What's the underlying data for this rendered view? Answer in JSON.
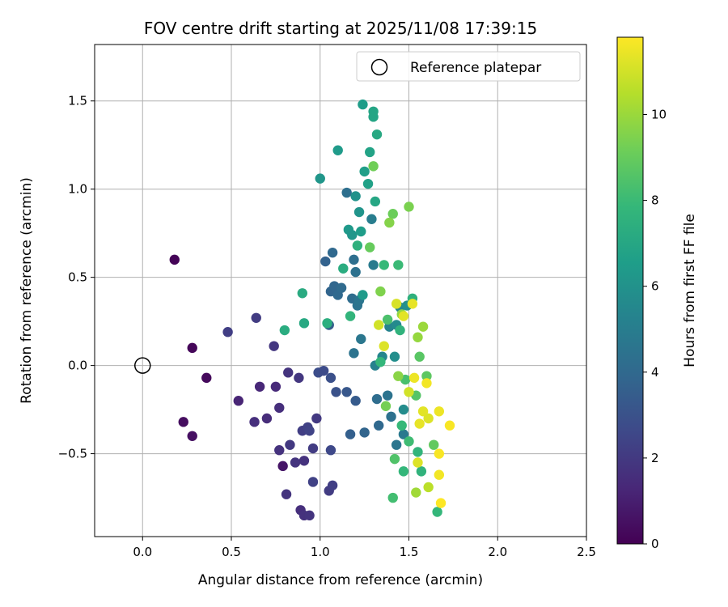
{
  "chart_data": {
    "type": "scatter",
    "title": "FOV centre drift starting at 2025/11/08 17:39:15",
    "xlabel": "Angular distance from reference (arcmin)",
    "ylabel": "Rotation from reference (arcmin)",
    "xlim": [
      -0.27,
      2.5
    ],
    "ylim": [
      -0.97,
      1.82
    ],
    "xticks": [
      0.0,
      0.5,
      1.0,
      1.5,
      2.0,
      2.5
    ],
    "xtick_labels": [
      "0.0",
      "0.5",
      "1.0",
      "1.5",
      "2.0",
      "2.5"
    ],
    "yticks": [
      -0.5,
      0.0,
      0.5,
      1.0,
      1.5
    ],
    "ytick_labels": [
      "−0.5",
      "0.0",
      "0.5",
      "1.0",
      "1.5"
    ],
    "grid": true,
    "legend": {
      "position": "top-right",
      "label": "Reference platepar"
    },
    "reference_point": [
      0.0,
      0.0
    ],
    "colorbar": {
      "label": "Hours from first FF file",
      "range": [
        0,
        11.8
      ],
      "ticks": [
        0,
        2,
        4,
        6,
        8,
        10
      ],
      "tick_labels": [
        "0",
        "2",
        "4",
        "6",
        "8",
        "10"
      ],
      "colormap": "viridis",
      "stops": [
        "#440154",
        "#482878",
        "#3e4989",
        "#31688e",
        "#26828e",
        "#1f9e89",
        "#35b779",
        "#6ece58",
        "#b5de2b",
        "#fde725"
      ]
    },
    "points": [
      {
        "x": 0.18,
        "y": 0.6,
        "h": 0.1
      },
      {
        "x": 0.28,
        "y": 0.1,
        "h": 0.2
      },
      {
        "x": 0.36,
        "y": -0.07,
        "h": 0.3
      },
      {
        "x": 0.23,
        "y": -0.32,
        "h": 0.4
      },
      {
        "x": 0.28,
        "y": -0.4,
        "h": 0.5
      },
      {
        "x": 0.79,
        "y": -0.57,
        "h": 0.7
      },
      {
        "x": 0.48,
        "y": 0.19,
        "h": 2.2
      },
      {
        "x": 0.64,
        "y": 0.27,
        "h": 2.1
      },
      {
        "x": 0.74,
        "y": 0.11,
        "h": 1.9
      },
      {
        "x": 0.54,
        "y": -0.2,
        "h": 1.2
      },
      {
        "x": 0.66,
        "y": -0.12,
        "h": 1.3
      },
      {
        "x": 0.63,
        "y": -0.32,
        "h": 1.6
      },
      {
        "x": 0.7,
        "y": -0.3,
        "h": 1.5
      },
      {
        "x": 0.75,
        "y": -0.12,
        "h": 1.4
      },
      {
        "x": 0.77,
        "y": -0.24,
        "h": 1.6
      },
      {
        "x": 0.82,
        "y": -0.04,
        "h": 1.8
      },
      {
        "x": 0.88,
        "y": -0.07,
        "h": 1.9
      },
      {
        "x": 0.77,
        "y": -0.48,
        "h": 1.7
      },
      {
        "x": 0.83,
        "y": -0.45,
        "h": 2.0
      },
      {
        "x": 0.86,
        "y": -0.55,
        "h": 1.8
      },
      {
        "x": 0.91,
        "y": -0.54,
        "h": 1.7
      },
      {
        "x": 0.81,
        "y": -0.73,
        "h": 1.8
      },
      {
        "x": 0.89,
        "y": -0.82,
        "h": 1.6
      },
      {
        "x": 0.91,
        "y": -0.85,
        "h": 1.7
      },
      {
        "x": 0.94,
        "y": -0.85,
        "h": 1.8
      },
      {
        "x": 0.9,
        "y": -0.37,
        "h": 2.2
      },
      {
        "x": 0.93,
        "y": -0.35,
        "h": 2.3
      },
      {
        "x": 0.94,
        "y": -0.37,
        "h": 2.4
      },
      {
        "x": 0.96,
        "y": -0.47,
        "h": 2.1
      },
      {
        "x": 0.98,
        "y": -0.3,
        "h": 2.0
      },
      {
        "x": 0.96,
        "y": -0.66,
        "h": 2.3
      },
      {
        "x": 1.05,
        "y": -0.71,
        "h": 2.1
      },
      {
        "x": 1.07,
        "y": -0.68,
        "h": 2.2
      },
      {
        "x": 1.06,
        "y": -0.48,
        "h": 2.6
      },
      {
        "x": 0.99,
        "y": -0.04,
        "h": 2.8
      },
      {
        "x": 1.02,
        "y": -0.03,
        "h": 2.7
      },
      {
        "x": 1.06,
        "y": -0.07,
        "h": 2.9
      },
      {
        "x": 1.09,
        "y": -0.15,
        "h": 3.0
      },
      {
        "x": 1.15,
        "y": -0.15,
        "h": 3.2
      },
      {
        "x": 1.2,
        "y": -0.2,
        "h": 3.4
      },
      {
        "x": 1.17,
        "y": -0.39,
        "h": 3.6
      },
      {
        "x": 1.25,
        "y": -0.38,
        "h": 3.8
      },
      {
        "x": 1.33,
        "y": -0.34,
        "h": 4.0
      },
      {
        "x": 1.32,
        "y": -0.19,
        "h": 4.2
      },
      {
        "x": 1.38,
        "y": -0.17,
        "h": 4.5
      },
      {
        "x": 1.4,
        "y": -0.29,
        "h": 4.4
      },
      {
        "x": 1.43,
        "y": -0.45,
        "h": 4.6
      },
      {
        "x": 1.47,
        "y": -0.39,
        "h": 4.8
      },
      {
        "x": 1.05,
        "y": 0.23,
        "h": 3.5
      },
      {
        "x": 1.03,
        "y": 0.59,
        "h": 3.7
      },
      {
        "x": 1.06,
        "y": 0.42,
        "h": 3.8
      },
      {
        "x": 1.08,
        "y": 0.45,
        "h": 3.9
      },
      {
        "x": 1.07,
        "y": 0.64,
        "h": 4.0
      },
      {
        "x": 1.1,
        "y": 0.4,
        "h": 4.0
      },
      {
        "x": 1.12,
        "y": 0.44,
        "h": 4.1
      },
      {
        "x": 1.15,
        "y": 0.98,
        "h": 4.3
      },
      {
        "x": 1.18,
        "y": 0.38,
        "h": 4.2
      },
      {
        "x": 1.19,
        "y": 0.6,
        "h": 4.3
      },
      {
        "x": 1.2,
        "y": 0.53,
        "h": 4.4
      },
      {
        "x": 1.21,
        "y": 0.34,
        "h": 4.5
      },
      {
        "x": 1.22,
        "y": 0.37,
        "h": 4.6
      },
      {
        "x": 1.19,
        "y": 0.07,
        "h": 4.5
      },
      {
        "x": 1.23,
        "y": 0.15,
        "h": 4.7
      },
      {
        "x": 1.3,
        "y": 0.57,
        "h": 4.9
      },
      {
        "x": 1.29,
        "y": 0.83,
        "h": 5.0
      },
      {
        "x": 1.31,
        "y": 0.0,
        "h": 5.2
      },
      {
        "x": 1.35,
        "y": 0.05,
        "h": 5.4
      },
      {
        "x": 1.39,
        "y": 0.22,
        "h": 5.3
      },
      {
        "x": 1.43,
        "y": 0.23,
        "h": 5.6
      },
      {
        "x": 1.45,
        "y": 0.33,
        "h": 5.5
      },
      {
        "x": 1.47,
        "y": -0.25,
        "h": 5.7
      },
      {
        "x": 1.42,
        "y": 0.05,
        "h": 5.8
      },
      {
        "x": 1.49,
        "y": 0.34,
        "h": 5.9
      },
      {
        "x": 1.0,
        "y": 1.06,
        "h": 6.2
      },
      {
        "x": 1.1,
        "y": 1.22,
        "h": 6.4
      },
      {
        "x": 1.2,
        "y": 0.96,
        "h": 6.0
      },
      {
        "x": 1.22,
        "y": 0.87,
        "h": 6.1
      },
      {
        "x": 1.16,
        "y": 0.77,
        "h": 6.3
      },
      {
        "x": 1.18,
        "y": 0.74,
        "h": 6.2
      },
      {
        "x": 1.23,
        "y": 0.76,
        "h": 6.5
      },
      {
        "x": 1.24,
        "y": 0.4,
        "h": 6.4
      },
      {
        "x": 1.25,
        "y": 1.1,
        "h": 6.6
      },
      {
        "x": 1.27,
        "y": 1.03,
        "h": 6.7
      },
      {
        "x": 1.28,
        "y": 1.21,
        "h": 6.8
      },
      {
        "x": 1.3,
        "y": 1.41,
        "h": 6.9
      },
      {
        "x": 1.3,
        "y": 1.44,
        "h": 6.9
      },
      {
        "x": 1.24,
        "y": 1.48,
        "h": 6.5
      },
      {
        "x": 1.31,
        "y": 0.93,
        "h": 7.0
      },
      {
        "x": 1.32,
        "y": 1.31,
        "h": 7.1
      },
      {
        "x": 0.9,
        "y": 0.41,
        "h": 7.2
      },
      {
        "x": 0.91,
        "y": 0.24,
        "h": 7.1
      },
      {
        "x": 0.8,
        "y": 0.2,
        "h": 7.3
      },
      {
        "x": 1.04,
        "y": 0.24,
        "h": 7.4
      },
      {
        "x": 1.13,
        "y": 0.55,
        "h": 7.3
      },
      {
        "x": 1.17,
        "y": 0.28,
        "h": 7.7
      },
      {
        "x": 1.21,
        "y": 0.68,
        "h": 7.5
      },
      {
        "x": 1.34,
        "y": 0.02,
        "h": 7.8
      },
      {
        "x": 1.36,
        "y": 0.57,
        "h": 7.9
      },
      {
        "x": 1.44,
        "y": 0.57,
        "h": 8.0
      },
      {
        "x": 1.45,
        "y": 0.2,
        "h": 7.6
      },
      {
        "x": 1.46,
        "y": -0.34,
        "h": 7.9
      },
      {
        "x": 1.47,
        "y": -0.6,
        "h": 7.8
      },
      {
        "x": 1.52,
        "y": 0.38,
        "h": 7.5
      },
      {
        "x": 1.55,
        "y": -0.49,
        "h": 7.7
      },
      {
        "x": 1.57,
        "y": -0.6,
        "h": 7.6
      },
      {
        "x": 1.66,
        "y": -0.83,
        "h": 7.8
      },
      {
        "x": 1.41,
        "y": -0.75,
        "h": 8.2
      },
      {
        "x": 1.48,
        "y": -0.08,
        "h": 8.3
      },
      {
        "x": 1.5,
        "y": -0.43,
        "h": 8.1
      },
      {
        "x": 1.38,
        "y": 0.26,
        "h": 8.4
      },
      {
        "x": 1.42,
        "y": -0.53,
        "h": 8.5
      },
      {
        "x": 1.54,
        "y": -0.17,
        "h": 8.6
      },
      {
        "x": 1.56,
        "y": 0.05,
        "h": 8.7
      },
      {
        "x": 1.6,
        "y": -0.06,
        "h": 8.8
      },
      {
        "x": 1.64,
        "y": -0.45,
        "h": 8.9
      },
      {
        "x": 1.28,
        "y": 0.67,
        "h": 9.0
      },
      {
        "x": 1.3,
        "y": 1.13,
        "h": 9.2
      },
      {
        "x": 1.41,
        "y": 0.86,
        "h": 9.1
      },
      {
        "x": 1.5,
        "y": 0.9,
        "h": 9.4
      },
      {
        "x": 1.39,
        "y": 0.81,
        "h": 9.6
      },
      {
        "x": 1.34,
        "y": 0.42,
        "h": 9.5
      },
      {
        "x": 1.37,
        "y": -0.23,
        "h": 9.3
      },
      {
        "x": 1.44,
        "y": -0.06,
        "h": 9.7
      },
      {
        "x": 1.46,
        "y": 0.29,
        "h": 9.8
      },
      {
        "x": 1.55,
        "y": 0.16,
        "h": 9.9
      },
      {
        "x": 1.58,
        "y": 0.22,
        "h": 10.0
      },
      {
        "x": 1.54,
        "y": -0.72,
        "h": 10.1
      },
      {
        "x": 1.61,
        "y": -0.69,
        "h": 10.6
      },
      {
        "x": 1.33,
        "y": 0.23,
        "h": 11.0
      },
      {
        "x": 1.36,
        "y": 0.11,
        "h": 11.2
      },
      {
        "x": 1.43,
        "y": 0.35,
        "h": 11.1
      },
      {
        "x": 1.47,
        "y": 0.28,
        "h": 11.3
      },
      {
        "x": 1.52,
        "y": 0.35,
        "h": 11.4
      },
      {
        "x": 1.5,
        "y": -0.15,
        "h": 11.0
      },
      {
        "x": 1.53,
        "y": -0.07,
        "h": 11.5
      },
      {
        "x": 1.55,
        "y": -0.55,
        "h": 11.2
      },
      {
        "x": 1.58,
        "y": -0.26,
        "h": 11.3
      },
      {
        "x": 1.56,
        "y": -0.33,
        "h": 11.4
      },
      {
        "x": 1.6,
        "y": -0.1,
        "h": 11.6
      },
      {
        "x": 1.61,
        "y": -0.3,
        "h": 11.2
      },
      {
        "x": 1.67,
        "y": -0.26,
        "h": 11.5
      },
      {
        "x": 1.67,
        "y": -0.5,
        "h": 11.7
      },
      {
        "x": 1.68,
        "y": -0.78,
        "h": 11.8
      },
      {
        "x": 1.67,
        "y": -0.62,
        "h": 11.6
      },
      {
        "x": 1.73,
        "y": -0.34,
        "h": 11.7
      }
    ]
  }
}
